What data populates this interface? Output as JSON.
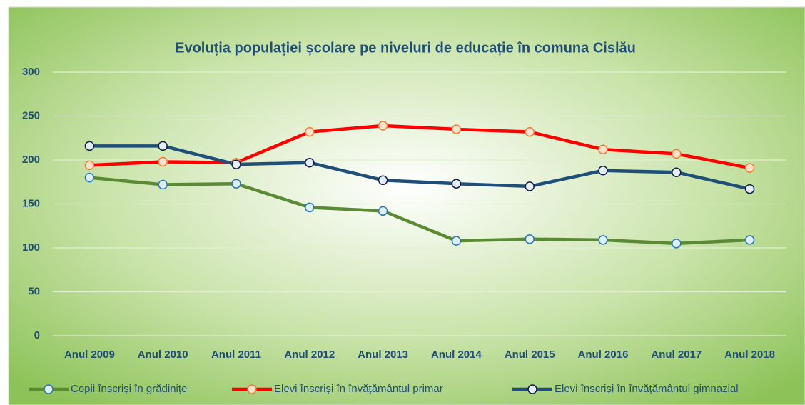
{
  "chart_data": {
    "type": "line",
    "title": "Evoluția populației școlare pe niveluri de educație în comuna Cislău",
    "categories": [
      "Anul 2009",
      "Anul 2010",
      "Anul 2011",
      "Anul 2012",
      "Anul 2013",
      "Anul 2014",
      "Anul 2015",
      "Anul 2016",
      "Anul 2017",
      "Anul 2018"
    ],
    "series": [
      {
        "name": "Copii înscriși în grădinițe",
        "color": "#5a8a34",
        "marker_fill": "#ddeef8",
        "marker_stroke": "#2e75b6",
        "values": [
          180,
          172,
          173,
          146,
          142,
          108,
          110,
          109,
          105,
          109
        ]
      },
      {
        "name": "Elevi înscriși în învățământul primar",
        "color": "#ff0000",
        "marker_fill": "#fde3cf",
        "marker_stroke": "#ed7d31",
        "values": [
          194,
          198,
          197,
          232,
          239,
          235,
          232,
          212,
          207,
          191
        ]
      },
      {
        "name": "Elevi înscriși în învățământul gimnazial",
        "color": "#1f4e79",
        "marker_fill": "#e8eef8",
        "marker_stroke": "#0d1f4a",
        "values": [
          216,
          216,
          195,
          197,
          177,
          173,
          170,
          188,
          186,
          167
        ]
      }
    ],
    "ylim": [
      0,
      300
    ],
    "yticks": [
      0,
      50,
      100,
      150,
      200,
      250,
      300
    ],
    "grid": true,
    "legend": "bottom"
  }
}
